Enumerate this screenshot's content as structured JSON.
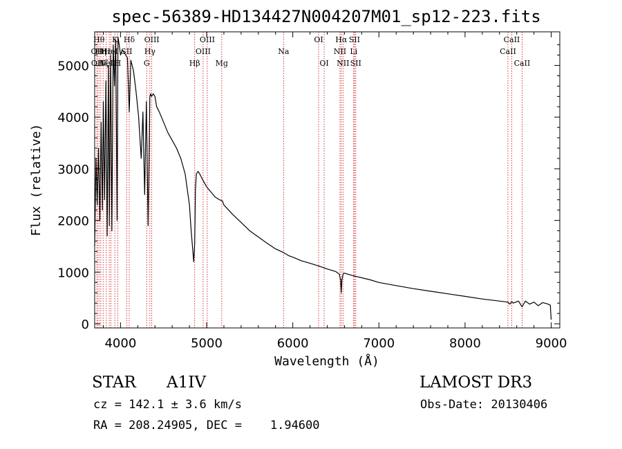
{
  "chart_data": {
    "type": "line",
    "title": "spec-56389-HD134427N004207M01_sp12-223.fits",
    "xlabel": "Wavelength (Å)",
    "ylabel": "Flux (relative)",
    "xlim": [
      3700,
      9100
    ],
    "ylim": [
      -80,
      5650
    ],
    "xticks": [
      4000,
      5000,
      6000,
      7000,
      8000,
      9000
    ],
    "yticks": [
      0,
      1000,
      2000,
      3000,
      4000,
      5000
    ],
    "grid": false,
    "line_color": "#000000",
    "marker_color": "#cc0000",
    "series": [
      {
        "name": "flux",
        "x": [
          3700,
          3715,
          3730,
          3745,
          3760,
          3775,
          3790,
          3800,
          3815,
          3830,
          3845,
          3860,
          3870,
          3885,
          3900,
          3915,
          3930,
          3945,
          3960,
          3970,
          3985,
          4000,
          4020,
          4040,
          4060,
          4080,
          4101,
          4120,
          4150,
          4180,
          4210,
          4240,
          4260,
          4280,
          4300,
          4320,
          4330,
          4340,
          4350,
          4360,
          4380,
          4400,
          4420,
          4450,
          4500,
          4550,
          4600,
          4650,
          4700,
          4750,
          4800,
          4820,
          4840,
          4850,
          4861,
          4870,
          4880,
          4900,
          4920,
          4950,
          5000,
          5050,
          5100,
          5150,
          5183,
          5200,
          5300,
          5400,
          5500,
          5600,
          5700,
          5800,
          5890,
          5950,
          6000,
          6100,
          6200,
          6300,
          6400,
          6500,
          6540,
          6555,
          6563,
          6570,
          6585,
          6600,
          6700,
          6800,
          6900,
          7000,
          7200,
          7400,
          7600,
          7800,
          8000,
          8200,
          8400,
          8498,
          8520,
          8542,
          8560,
          8620,
          8662,
          8700,
          8750,
          8800,
          8850,
          8900,
          8950,
          8990,
          9000
        ],
        "y": [
          1500,
          3200,
          2300,
          3400,
          2000,
          3900,
          2200,
          4300,
          2400,
          4700,
          1700,
          5000,
          1900,
          5200,
          1800,
          5400,
          4600,
          5500,
          2000,
          5550,
          5400,
          5200,
          5300,
          5250,
          5200,
          5150,
          4100,
          5100,
          4900,
          4500,
          4000,
          3200,
          4100,
          2500,
          4300,
          1900,
          3000,
          4400,
          4450,
          4400,
          4450,
          4400,
          4200,
          4100,
          3900,
          3700,
          3550,
          3400,
          3200,
          2900,
          2300,
          1800,
          1400,
          1200,
          1550,
          2600,
          2900,
          2950,
          2900,
          2800,
          2650,
          2550,
          2450,
          2400,
          2380,
          2300,
          2120,
          1960,
          1800,
          1680,
          1560,
          1450,
          1380,
          1320,
          1290,
          1220,
          1170,
          1120,
          1060,
          1010,
          960,
          850,
          600,
          850,
          970,
          980,
          930,
          890,
          850,
          800,
          740,
          680,
          630,
          580,
          530,
          480,
          440,
          420,
          380,
          430,
          400,
          440,
          330,
          440,
          380,
          420,
          350,
          410,
          390,
          360,
          80
        ]
      }
    ],
    "line_markers": [
      {
        "x": 3727,
        "label": "OII",
        "row": 2
      },
      {
        "x": 3730,
        "label": "OII",
        "row": 3
      },
      {
        "x": 3750,
        "label": "Hθ",
        "row": 1
      },
      {
        "x": 3771,
        "label": "Hη",
        "row": 2
      },
      {
        "x": 3798,
        "label": "Hζ",
        "row": 3
      },
      {
        "x": 3835,
        "label": "Hε",
        "row": 2
      },
      {
        "x": 3869,
        "label": "NeIII",
        "row": 3
      },
      {
        "x": 3889,
        "label": "HeI",
        "row": 2
      },
      {
        "x": 3934,
        "label": "K",
        "row": 1
      },
      {
        "x": 3968,
        "label": "H",
        "row": 3
      },
      {
        "x": 4072,
        "label": "SII",
        "row": 2
      },
      {
        "x": 4101,
        "label": "Hδ",
        "row": 1
      },
      {
        "x": 4304,
        "label": "G",
        "row": 3
      },
      {
        "x": 4341,
        "label": "Hγ",
        "row": 2
      },
      {
        "x": 4363,
        "label": "OIII",
        "row": 1
      },
      {
        "x": 4861,
        "label": "Hβ",
        "row": 3
      },
      {
        "x": 4959,
        "label": "OIII",
        "row": 2
      },
      {
        "x": 5007,
        "label": "OIII",
        "row": 1
      },
      {
        "x": 5175,
        "label": "Mg",
        "row": 3
      },
      {
        "x": 5893,
        "label": "Na",
        "row": 2
      },
      {
        "x": 6300,
        "label": "OI",
        "row": 1
      },
      {
        "x": 6364,
        "label": "OI",
        "row": 3
      },
      {
        "x": 6548,
        "label": "NII",
        "row": 2
      },
      {
        "x": 6563,
        "label": "Hα",
        "row": 1
      },
      {
        "x": 6583,
        "label": "NII",
        "row": 3
      },
      {
        "x": 6707,
        "label": "Li",
        "row": 2
      },
      {
        "x": 6716,
        "label": "SII",
        "row": 1
      },
      {
        "x": 6731,
        "label": "SII",
        "row": 3
      },
      {
        "x": 8498,
        "label": "CaII",
        "row": 2
      },
      {
        "x": 8542,
        "label": "CaII",
        "row": 1
      },
      {
        "x": 8662,
        "label": "CaII",
        "row": 3
      }
    ]
  },
  "info": {
    "object_class": "STAR",
    "subclass": "A1IV",
    "survey": "LAMOST DR3",
    "redshift": "cz = 142.1 ± 3.6 km/s",
    "obs_date": "Obs-Date: 20130406",
    "coords": "RA = 208.24905, DEC =    1.94600"
  }
}
